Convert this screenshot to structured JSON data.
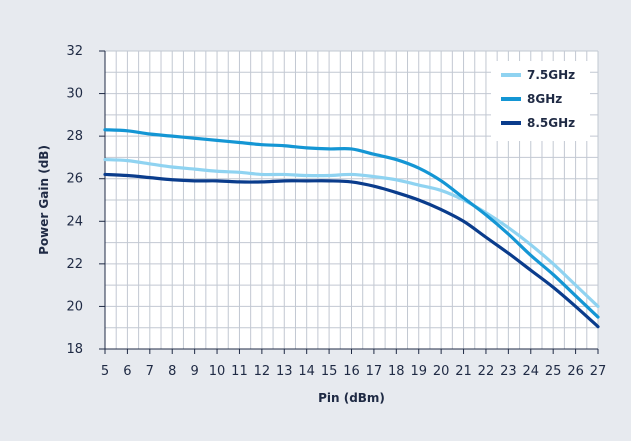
{
  "chart_data": {
    "type": "line",
    "title": "",
    "xlabel": "Pin (dBm)",
    "ylabel": "Power Gain (dB)",
    "xlim": [
      5,
      27
    ],
    "ylim": [
      18,
      32
    ],
    "x_ticks": [
      "5",
      "6",
      "7",
      "8",
      "9",
      "10",
      "11",
      "12",
      "13",
      "14",
      "15",
      "16",
      "17",
      "18",
      "19",
      "20",
      "21",
      "22",
      "23",
      "24",
      "25",
      "26",
      "27"
    ],
    "y_ticks": [
      "18",
      "20",
      "22",
      "24",
      "26",
      "28",
      "30",
      "32"
    ],
    "grid": true,
    "legend_position": "top-right",
    "x": [
      5,
      6,
      7,
      8,
      9,
      10,
      11,
      12,
      13,
      14,
      15,
      16,
      17,
      18,
      19,
      20,
      21,
      22,
      23,
      24,
      25,
      26,
      27
    ],
    "series": [
      {
        "name": "7.5GHz",
        "color": "#8fd3f1",
        "values": [
          26.9,
          26.85,
          26.7,
          26.55,
          26.45,
          26.35,
          26.3,
          26.2,
          26.2,
          26.15,
          26.15,
          26.2,
          26.1,
          25.95,
          25.7,
          25.45,
          25.0,
          24.4,
          23.7,
          22.9,
          22.0,
          21.0,
          20.0
        ]
      },
      {
        "name": "8GHz",
        "color": "#1496d4",
        "values": [
          28.3,
          28.25,
          28.1,
          28.0,
          27.9,
          27.8,
          27.7,
          27.6,
          27.55,
          27.45,
          27.4,
          27.4,
          27.15,
          26.9,
          26.5,
          25.9,
          25.1,
          24.3,
          23.4,
          22.4,
          21.5,
          20.5,
          19.5
        ]
      },
      {
        "name": "8.5GHz",
        "color": "#0a3c8c",
        "values": [
          26.2,
          26.15,
          26.05,
          25.95,
          25.9,
          25.9,
          25.85,
          25.85,
          25.9,
          25.9,
          25.9,
          25.85,
          25.65,
          25.35,
          25.0,
          24.55,
          24.0,
          23.25,
          22.5,
          21.7,
          20.9,
          20.0,
          19.05
        ]
      }
    ]
  }
}
